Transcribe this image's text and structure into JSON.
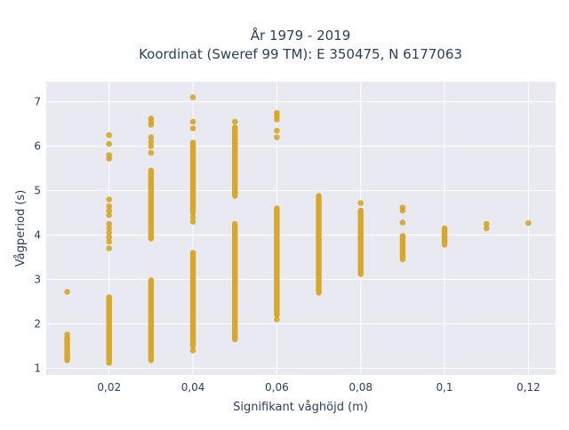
{
  "chart_data": {
    "type": "scatter",
    "title_line1": "År 1979 - 2019",
    "title_line2": "Koordinat (Sweref 99 TM): E 350475, N 6177063",
    "xlabel": "Signifikant våghöjd (m)",
    "ylabel": "Vågperiod (s)",
    "xlim": [
      0.005,
      0.1265
    ],
    "ylim": [
      0.85,
      7.45
    ],
    "x_ticks": [
      {
        "value": 0.02,
        "label": "0,02"
      },
      {
        "value": 0.04,
        "label": "0,04"
      },
      {
        "value": 0.06,
        "label": "0,06"
      },
      {
        "value": 0.08,
        "label": "0,08"
      },
      {
        "value": 0.1,
        "label": "0,1"
      },
      {
        "value": 0.12,
        "label": "0,12"
      }
    ],
    "y_ticks": [
      {
        "value": 1,
        "label": "1"
      },
      {
        "value": 2,
        "label": "2"
      },
      {
        "value": 3,
        "label": "3"
      },
      {
        "value": 4,
        "label": "4"
      },
      {
        "value": 5,
        "label": "5"
      },
      {
        "value": 6,
        "label": "6"
      },
      {
        "value": 7,
        "label": "7"
      }
    ],
    "grid": true,
    "colors": {
      "plot_bg": "#e9e9f1",
      "grid": "#ffffff",
      "marker": "#d4a21a"
    },
    "series": [
      {
        "points": [
          {
            "x": 0.01,
            "y": 2.72
          },
          {
            "x": 0.01,
            "y": 1.76
          },
          {
            "x": 0.02,
            "y": 6.25
          },
          {
            "x": 0.02,
            "y": 6.05
          },
          {
            "x": 0.02,
            "y": 5.8
          },
          {
            "x": 0.02,
            "y": 5.72
          },
          {
            "x": 0.02,
            "y": 4.8
          },
          {
            "x": 0.02,
            "y": 4.65
          },
          {
            "x": 0.02,
            "y": 4.55
          },
          {
            "x": 0.02,
            "y": 4.45
          },
          {
            "x": 0.02,
            "y": 4.25
          },
          {
            "x": 0.02,
            "y": 4.15
          },
          {
            "x": 0.02,
            "y": 4.05
          },
          {
            "x": 0.02,
            "y": 3.95
          },
          {
            "x": 0.02,
            "y": 3.85
          },
          {
            "x": 0.02,
            "y": 3.7
          },
          {
            "x": 0.03,
            "y": 6.62
          },
          {
            "x": 0.03,
            "y": 6.55
          },
          {
            "x": 0.03,
            "y": 6.48
          },
          {
            "x": 0.03,
            "y": 6.2
          },
          {
            "x": 0.03,
            "y": 6.1
          },
          {
            "x": 0.03,
            "y": 6.0
          },
          {
            "x": 0.03,
            "y": 5.85
          },
          {
            "x": 0.04,
            "y": 7.1
          },
          {
            "x": 0.04,
            "y": 6.55
          },
          {
            "x": 0.04,
            "y": 6.4
          },
          {
            "x": 0.04,
            "y": 4.4
          },
          {
            "x": 0.04,
            "y": 4.3
          },
          {
            "x": 0.04,
            "y": 1.4
          },
          {
            "x": 0.05,
            "y": 6.55
          },
          {
            "x": 0.06,
            "y": 6.75
          },
          {
            "x": 0.06,
            "y": 6.68
          },
          {
            "x": 0.06,
            "y": 6.6
          },
          {
            "x": 0.06,
            "y": 6.35
          },
          {
            "x": 0.06,
            "y": 6.2
          },
          {
            "x": 0.06,
            "y": 2.1
          },
          {
            "x": 0.08,
            "y": 4.72
          },
          {
            "x": 0.09,
            "y": 4.62
          },
          {
            "x": 0.09,
            "y": 4.55
          },
          {
            "x": 0.09,
            "y": 4.28
          },
          {
            "x": 0.11,
            "y": 4.25
          },
          {
            "x": 0.11,
            "y": 4.15
          },
          {
            "x": 0.12,
            "y": 4.27
          }
        ],
        "ranges": [
          {
            "x": 0.01,
            "y_min": 1.18,
            "y_max": 1.68
          },
          {
            "x": 0.02,
            "y_min": 1.12,
            "y_max": 2.6
          },
          {
            "x": 0.03,
            "y_min": 3.92,
            "y_max": 5.45
          },
          {
            "x": 0.03,
            "y_min": 1.18,
            "y_max": 2.98
          },
          {
            "x": 0.04,
            "y_min": 4.5,
            "y_max": 6.08
          },
          {
            "x": 0.04,
            "y_min": 1.5,
            "y_max": 3.6
          },
          {
            "x": 0.05,
            "y_min": 4.88,
            "y_max": 6.42
          },
          {
            "x": 0.05,
            "y_min": 1.65,
            "y_max": 4.25
          },
          {
            "x": 0.06,
            "y_min": 2.2,
            "y_max": 4.6
          },
          {
            "x": 0.07,
            "y_min": 2.7,
            "y_max": 4.88
          },
          {
            "x": 0.08,
            "y_min": 3.12,
            "y_max": 4.55
          },
          {
            "x": 0.09,
            "y_min": 3.45,
            "y_max": 3.98
          },
          {
            "x": 0.1,
            "y_min": 3.78,
            "y_max": 4.15
          }
        ]
      }
    ]
  }
}
